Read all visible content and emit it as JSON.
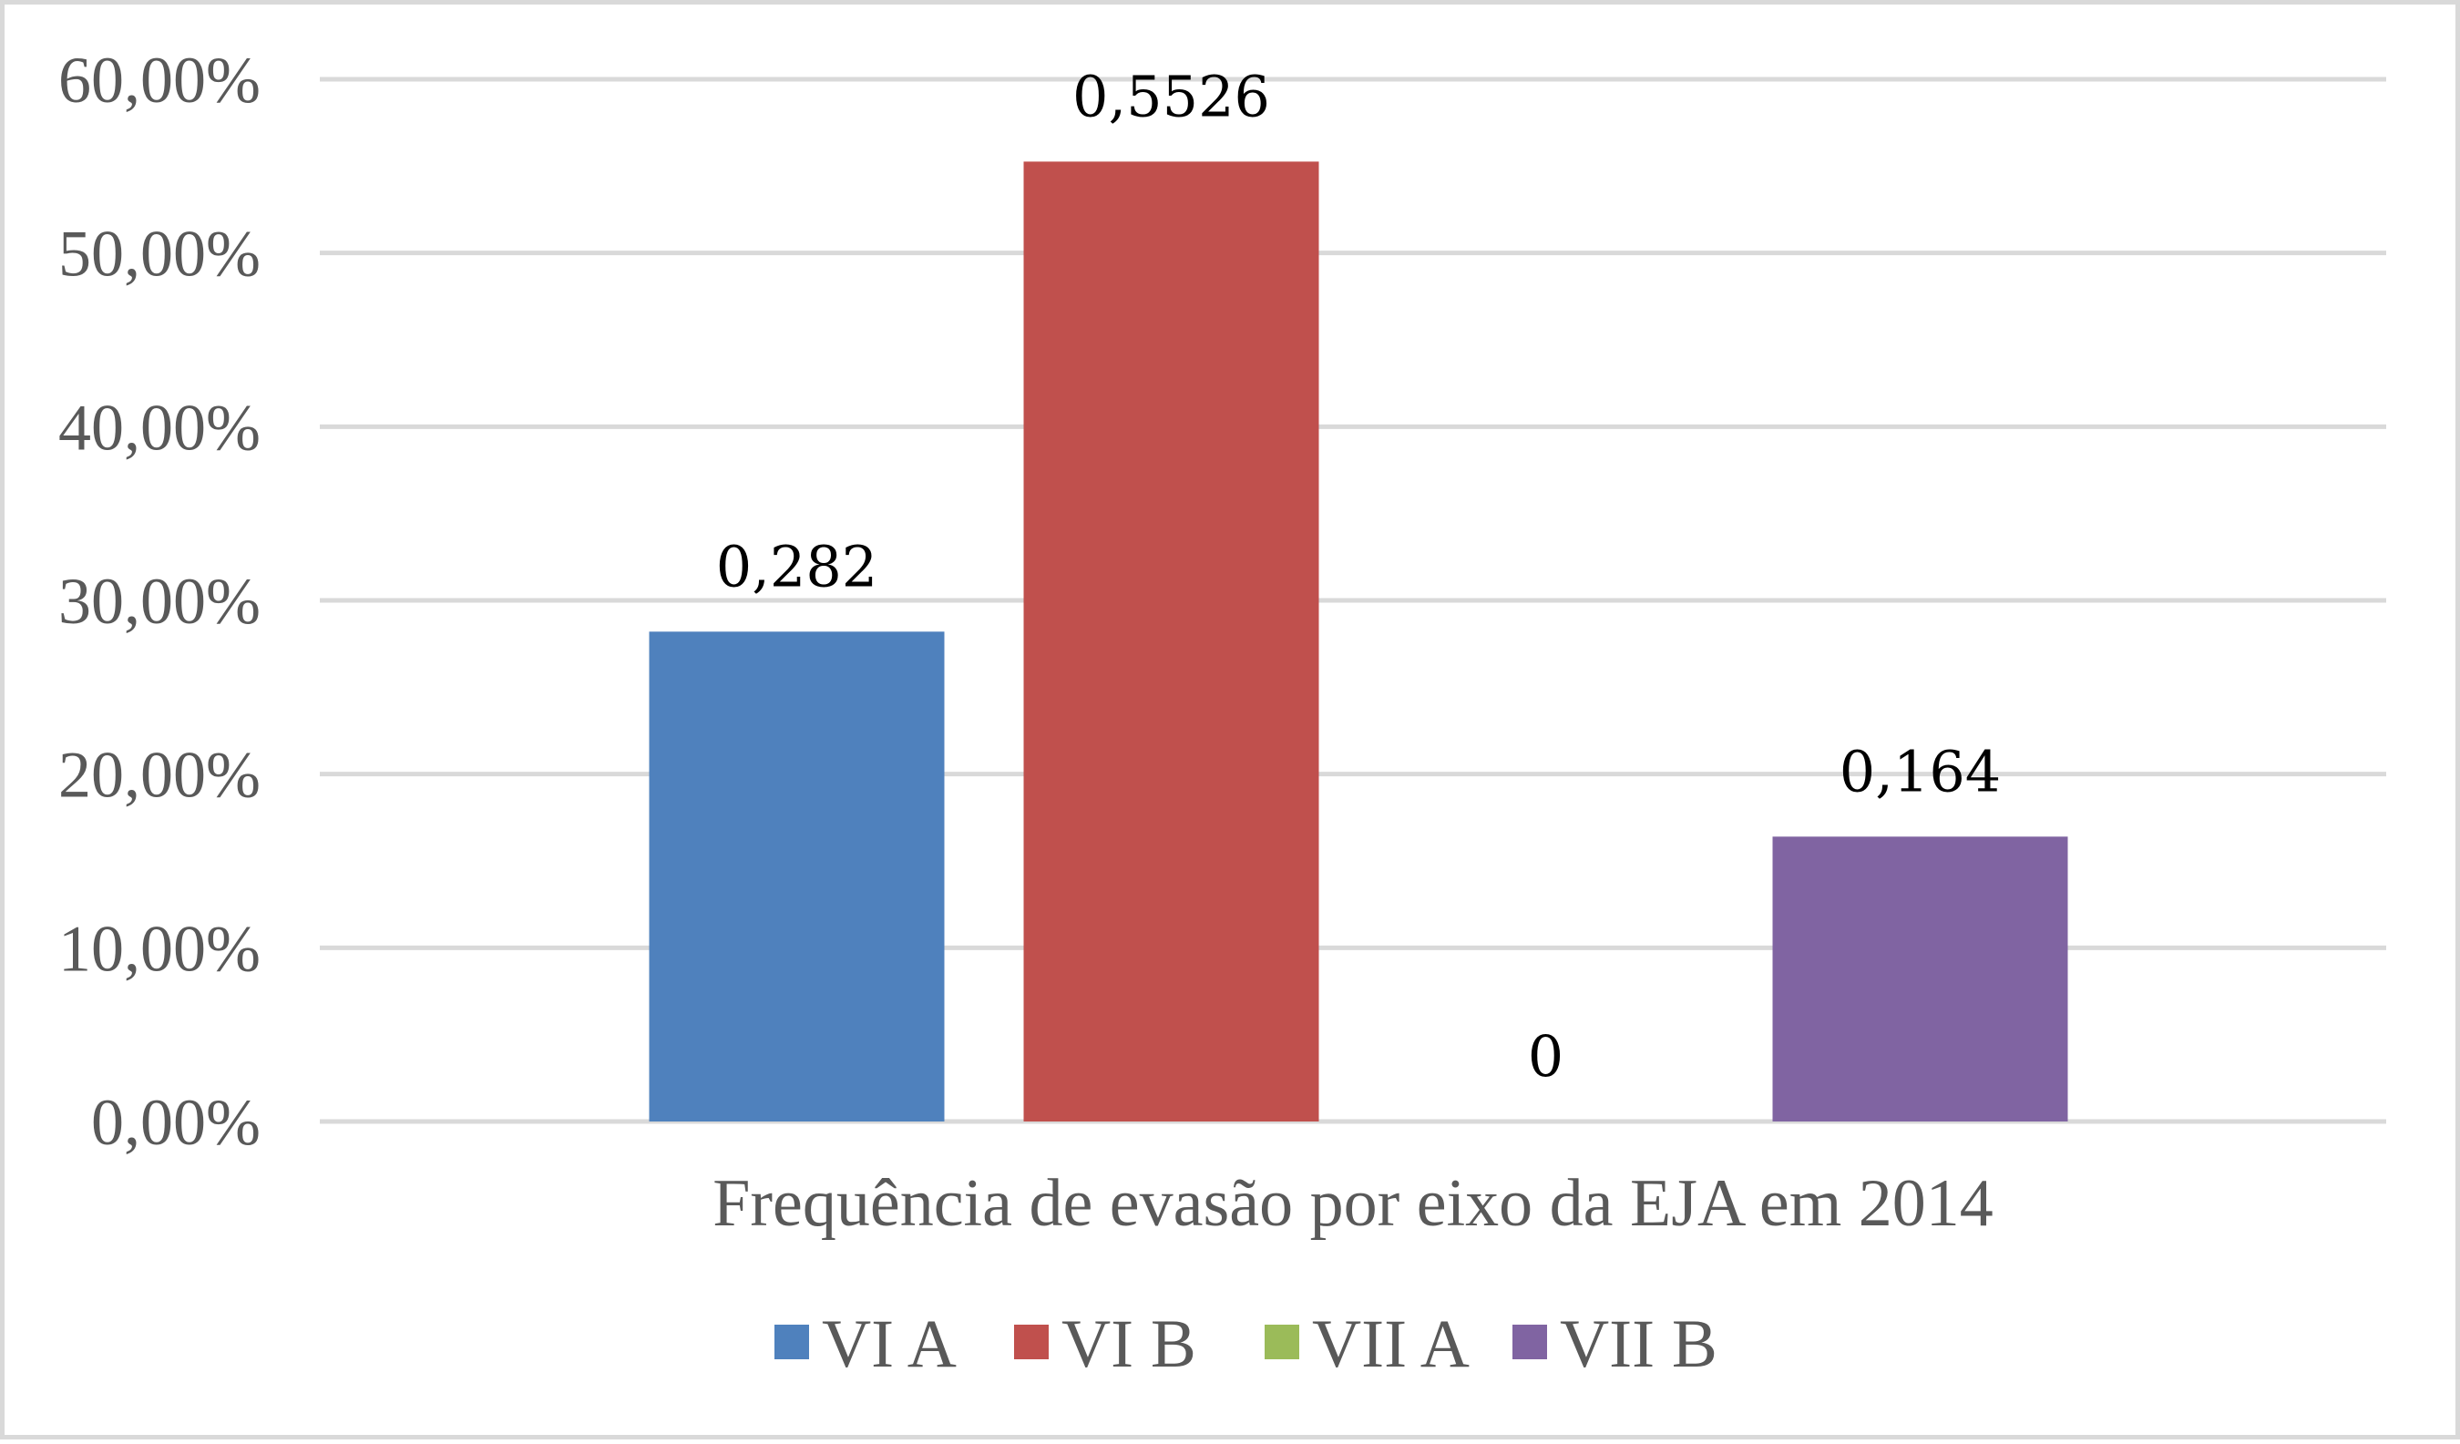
{
  "chart_data": {
    "type": "bar",
    "title": "",
    "xlabel": "Frequência de evasão por eixo da EJA em 2014",
    "ylabel": "",
    "categories": [
      "Frequência de evasão por eixo da EJA em 2014"
    ],
    "series": [
      {
        "name": "VI A",
        "values": [
          0.282
        ],
        "label": "0,282",
        "color": "#4f81bd"
      },
      {
        "name": "VI B",
        "values": [
          0.5526
        ],
        "label": "0,5526",
        "color": "#c0504d"
      },
      {
        "name": "VII A",
        "values": [
          0
        ],
        "label": "0",
        "color": "#9bbb59"
      },
      {
        "name": "VII B",
        "values": [
          0.164
        ],
        "label": "0,164",
        "color": "#8064a2"
      }
    ],
    "ylim": [
      0,
      0.6
    ],
    "yticks": [
      0,
      0.1,
      0.2,
      0.3,
      0.4,
      0.5,
      0.6
    ],
    "ytick_labels": [
      "0,00%",
      "10,00%",
      "20,00%",
      "30,00%",
      "40,00%",
      "50,00%",
      "60,00%"
    ],
    "grid": true,
    "legend_position": "bottom"
  }
}
